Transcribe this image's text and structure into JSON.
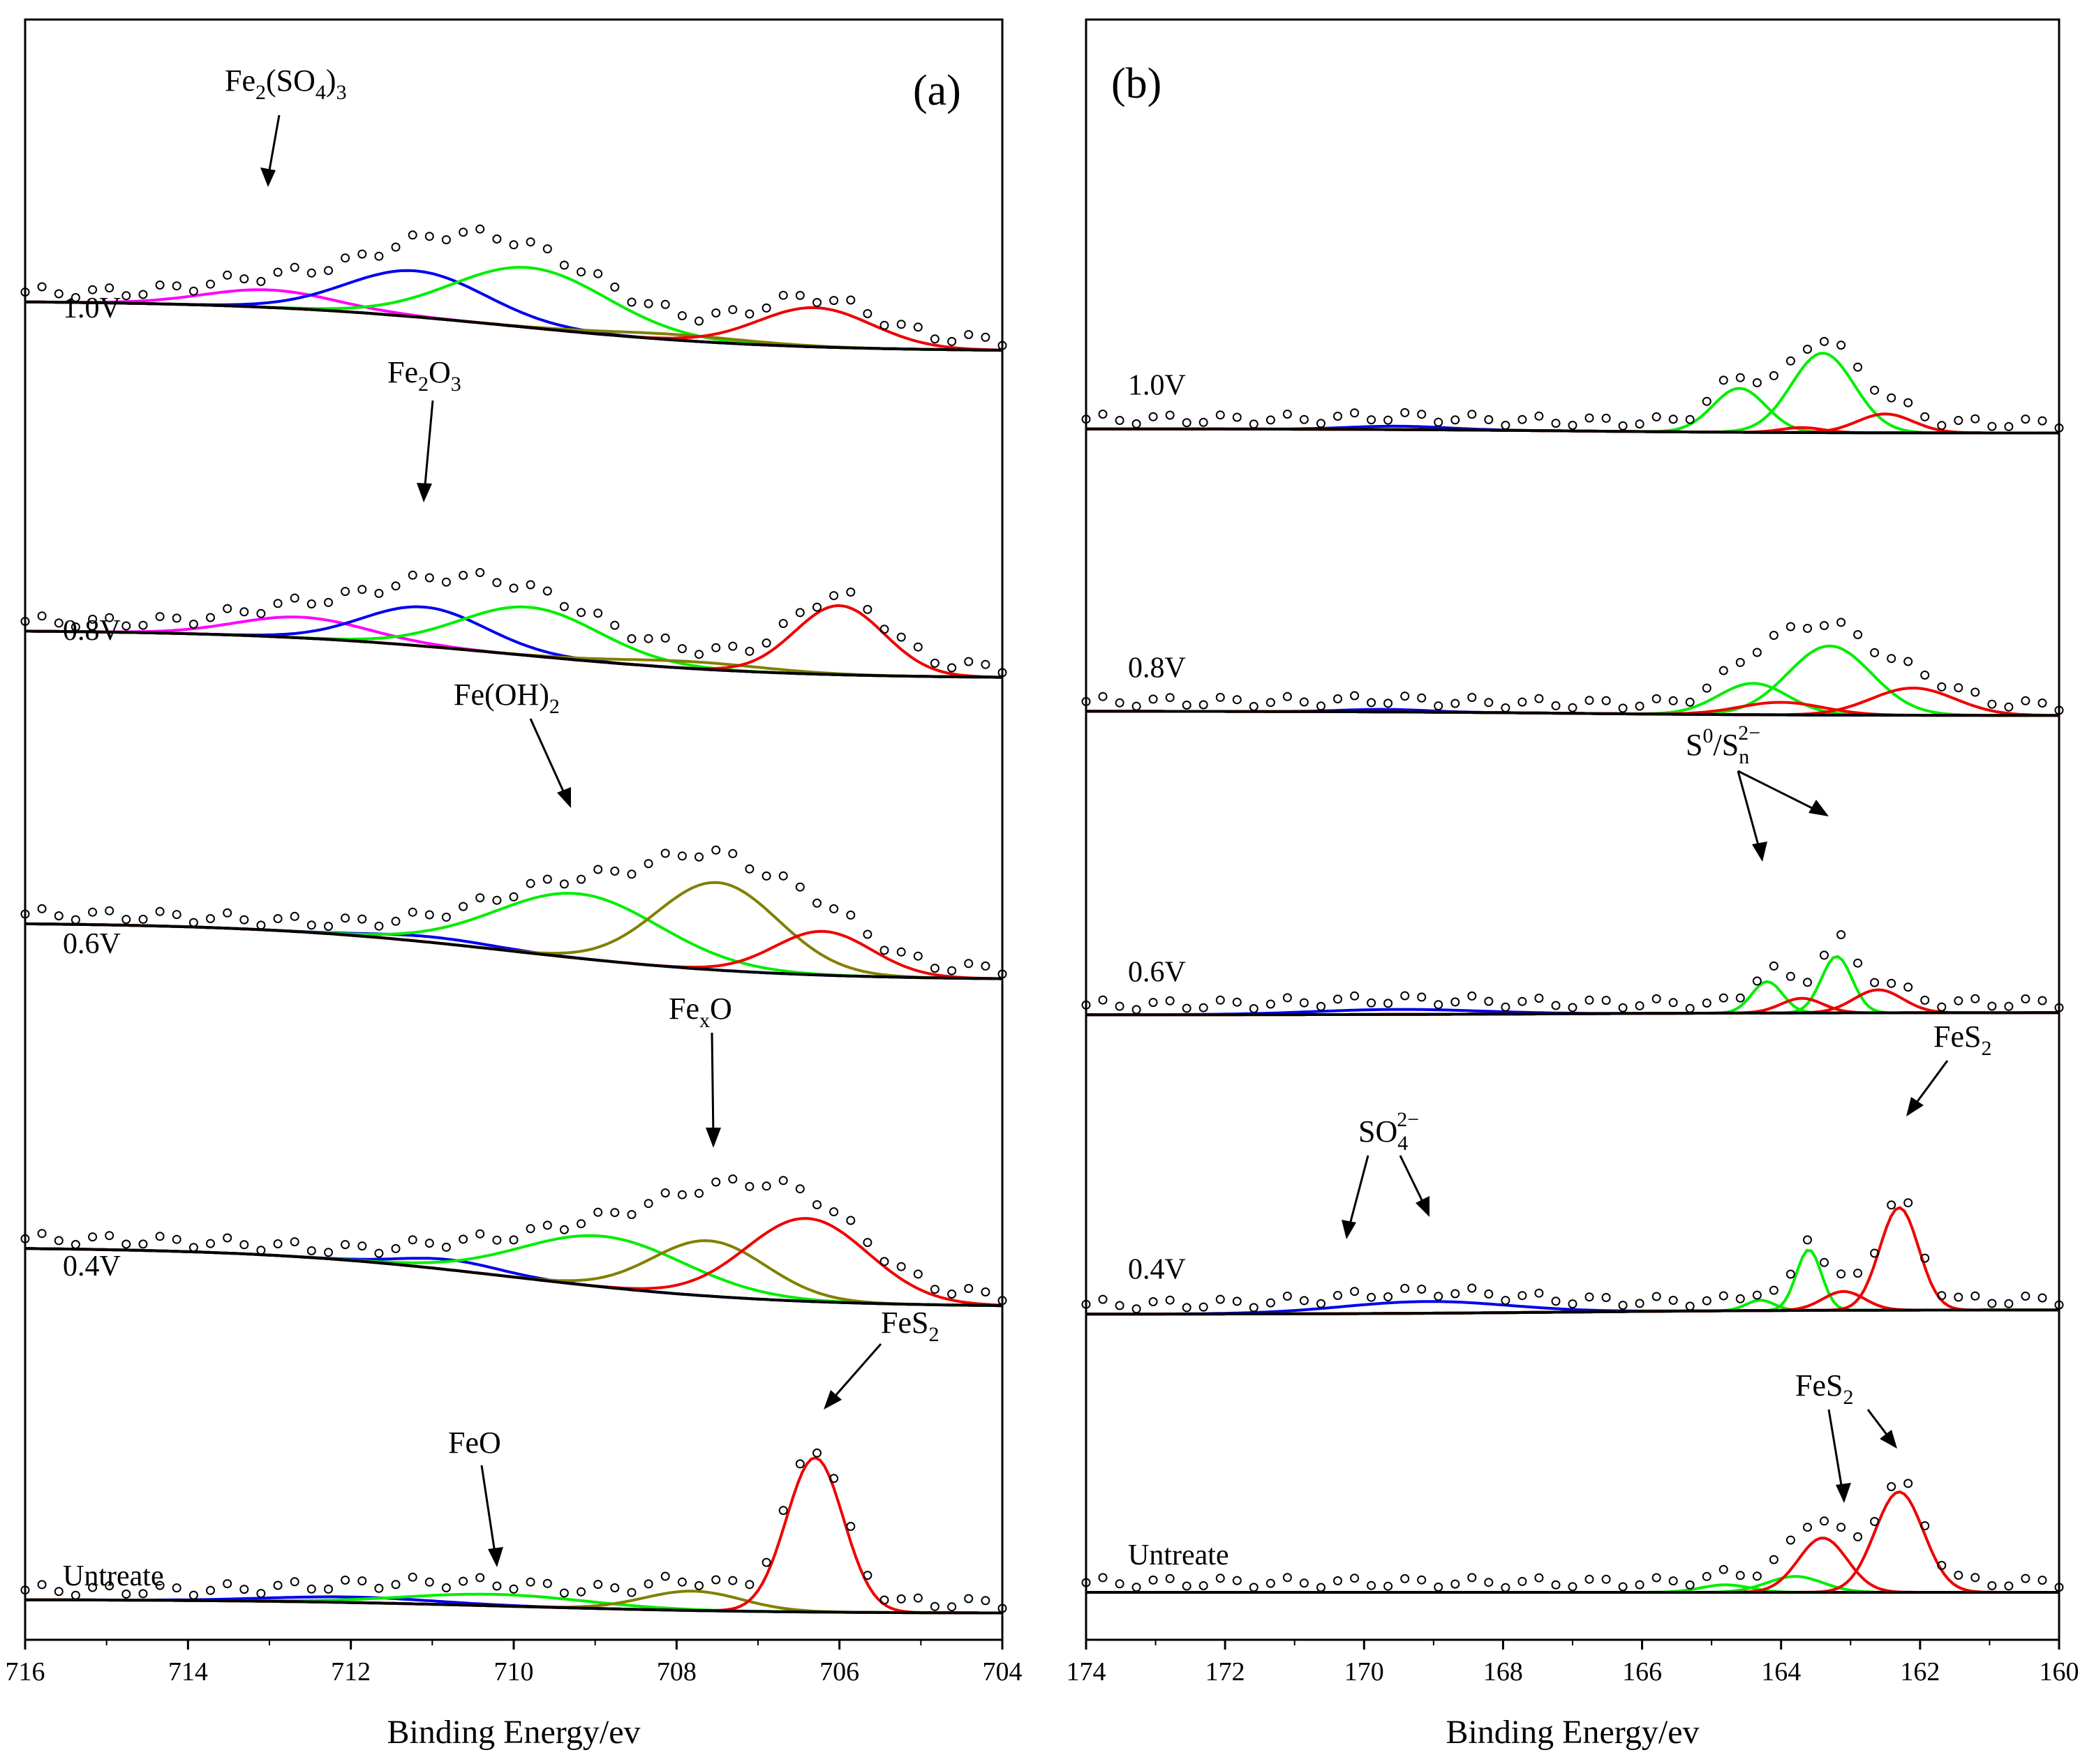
{
  "chart_data": [
    {
      "panel": "(a)",
      "type": "line",
      "subtype": "xps-spectra-stacked",
      "xlabel": "Binding Energy/ev",
      "xlim": [
        716,
        704
      ],
      "xticks": [
        "716",
        "714",
        "712",
        "710",
        "708",
        "706",
        "704"
      ],
      "components": {
        "Fe2(SO4)3": {
          "color": "#ff00ff"
        },
        "Fe2O3": {
          "color": "#0000ee"
        },
        "Fe(OH)2": {
          "color": "#00ee00"
        },
        "FexO": {
          "color": "#808000"
        },
        "FeS2": {
          "color": "#ee0000"
        },
        "baseline": {
          "color": "#000000"
        }
      },
      "spectra": [
        {
          "label": "1.0V",
          "offset": 3.9,
          "bg": [
            0.1,
            1.2
          ],
          "peaks": [
            {
              "c": "#ff00ff",
              "x": 713.0,
              "w": 0.8,
              "h": 0.38
            },
            {
              "c": "#0000ee",
              "x": 711.2,
              "w": 0.85,
              "h": 1.0
            },
            {
              "c": "#00ee00",
              "x": 709.8,
              "w": 0.95,
              "h": 1.3
            },
            {
              "c": "#808000",
              "x": 708.0,
              "w": 0.9,
              "h": 0.12
            },
            {
              "c": "#ee0000",
              "x": 706.3,
              "w": 0.7,
              "h": 0.85
            }
          ]
        },
        {
          "label": "0.8V",
          "offset": 2.9,
          "bg": [
            0.0,
            1.05
          ],
          "peaks": [
            {
              "c": "#ff00ff",
              "x": 712.6,
              "w": 0.8,
              "h": 0.45
            },
            {
              "c": "#0000ee",
              "x": 711.1,
              "w": 0.75,
              "h": 0.85
            },
            {
              "c": "#00ee00",
              "x": 709.8,
              "w": 0.85,
              "h": 1.05
            },
            {
              "c": "#808000",
              "x": 707.8,
              "w": 0.9,
              "h": 0.15
            },
            {
              "c": "#ee0000",
              "x": 706.0,
              "w": 0.55,
              "h": 1.5
            }
          ]
        },
        {
          "label": "0.6V",
          "offset": 1.95,
          "bg": [
            0.1,
            1.35
          ],
          "peaks": [
            {
              "c": "#0000ee",
              "x": 711.0,
              "w": 0.7,
              "h": 0.12
            },
            {
              "c": "#00ee00",
              "x": 709.2,
              "w": 1.0,
              "h": 1.4
            },
            {
              "c": "#808000",
              "x": 707.5,
              "w": 0.75,
              "h": 1.9
            },
            {
              "c": "#ee0000",
              "x": 706.2,
              "w": 0.6,
              "h": 0.95
            }
          ]
        },
        {
          "label": "0.4V",
          "offset": 0.95,
          "bg": [
            0.0,
            1.3
          ],
          "peaks": [
            {
              "c": "#0000ee",
              "x": 710.8,
              "w": 0.6,
              "h": 0.22
            },
            {
              "c": "#00ee00",
              "x": 708.9,
              "w": 1.0,
              "h": 1.1
            },
            {
              "c": "#808000",
              "x": 707.6,
              "w": 0.7,
              "h": 1.2
            },
            {
              "c": "#ee0000",
              "x": 706.4,
              "w": 0.75,
              "h": 1.8
            }
          ]
        },
        {
          "label": "Untreate",
          "offset": 0.0,
          "bg": [
            0.0,
            0.3
          ],
          "peaks": [
            {
              "c": "#0000ee",
              "x": 712.0,
              "w": 1.0,
              "h": 0.12
            },
            {
              "c": "#00ee00",
              "x": 710.2,
              "w": 1.1,
              "h": 0.25
            },
            {
              "c": "#808000",
              "x": 707.8,
              "w": 0.6,
              "h": 0.42
            },
            {
              "c": "#ee0000",
              "x": 706.3,
              "w": 0.35,
              "h": 3.35
            }
          ]
        }
      ],
      "annotations": [
        {
          "text": "Fe2(SO4)3"
        },
        {
          "text": "Fe2O3"
        },
        {
          "text": "Fe(OH)2"
        },
        {
          "text": "FexO"
        },
        {
          "text": "FeS2"
        },
        {
          "text": "FeO"
        }
      ]
    },
    {
      "panel": "(b)",
      "type": "line",
      "subtype": "xps-spectra-stacked",
      "xlabel": "Binding Energy/ev",
      "xlim": [
        174,
        160
      ],
      "xticks": [
        "174",
        "172",
        "170",
        "168",
        "166",
        "164",
        "162",
        "160"
      ],
      "components": {
        "SO4 2-": {
          "color": "#0000ee"
        },
        "S0/Sn 2-": {
          "color": "#00ee00"
        },
        "FeS2": {
          "color": "#ee0000"
        },
        "baseline": {
          "color": "#000000"
        }
      },
      "spectra": [
        {
          "label": "1.0V",
          "offset": 3.9,
          "bg": [
            0.0,
            0.1
          ],
          "peaks": [
            {
              "c": "#0000ee",
              "x": 169.5,
              "w": 0.7,
              "h": 0.08
            },
            {
              "c": "#00ee00",
              "x": 164.6,
              "w": 0.38,
              "h": 1.05
            },
            {
              "c": "#00ee00",
              "x": 163.4,
              "w": 0.45,
              "h": 1.9
            },
            {
              "c": "#ee0000",
              "x": 163.7,
              "w": 0.3,
              "h": 0.12
            },
            {
              "c": "#ee0000",
              "x": 162.5,
              "w": 0.4,
              "h": 0.45
            }
          ]
        },
        {
          "label": "0.8V",
          "offset": 2.95,
          "bg": [
            0.0,
            0.1
          ],
          "peaks": [
            {
              "c": "#0000ee",
              "x": 169.7,
              "w": 0.6,
              "h": 0.06
            },
            {
              "c": "#00ee00",
              "x": 164.4,
              "w": 0.5,
              "h": 0.75
            },
            {
              "c": "#00ee00",
              "x": 163.3,
              "w": 0.6,
              "h": 1.65
            },
            {
              "c": "#ee0000",
              "x": 164.0,
              "w": 0.6,
              "h": 0.3
            },
            {
              "c": "#ee0000",
              "x": 162.1,
              "w": 0.6,
              "h": 0.65
            }
          ]
        },
        {
          "label": "0.6V",
          "offset": 1.95,
          "bg": [
            0.0,
            -0.05
          ],
          "peaks": [
            {
              "c": "#0000ee",
              "x": 169.5,
              "w": 1.2,
              "h": 0.12
            },
            {
              "c": "#00ee00",
              "x": 164.2,
              "w": 0.22,
              "h": 0.75
            },
            {
              "c": "#00ee00",
              "x": 163.2,
              "w": 0.22,
              "h": 1.35
            },
            {
              "c": "#ee0000",
              "x": 163.7,
              "w": 0.3,
              "h": 0.35
            },
            {
              "c": "#ee0000",
              "x": 162.6,
              "w": 0.35,
              "h": 0.55
            }
          ]
        },
        {
          "label": "0.4V",
          "offset": 0.95,
          "bg": [
            0.0,
            -0.1
          ],
          "peaks": [
            {
              "c": "#0000ee",
              "x": 169.1,
              "w": 1.2,
              "h": 0.28
            },
            {
              "c": "#00ee00",
              "x": 164.3,
              "w": 0.2,
              "h": 0.25
            },
            {
              "c": "#00ee00",
              "x": 163.6,
              "w": 0.18,
              "h": 1.45
            },
            {
              "c": "#ee0000",
              "x": 163.1,
              "w": 0.3,
              "h": 0.45
            },
            {
              "c": "#ee0000",
              "x": 162.3,
              "w": 0.28,
              "h": 2.45
            }
          ]
        },
        {
          "label": "Untreate",
          "offset": 0.0,
          "bg": [
            0.0,
            0.0
          ],
          "peaks": [
            {
              "c": "#00ee00",
              "x": 164.8,
              "w": 0.35,
              "h": 0.18
            },
            {
              "c": "#00ee00",
              "x": 163.8,
              "w": 0.4,
              "h": 0.38
            },
            {
              "c": "#ee0000",
              "x": 163.4,
              "w": 0.35,
              "h": 1.3
            },
            {
              "c": "#ee0000",
              "x": 162.3,
              "w": 0.35,
              "h": 2.4
            }
          ]
        }
      ],
      "annotations": [
        {
          "text": "S0/Sn2-"
        },
        {
          "text": "FeS2"
        },
        {
          "text": "SO4 2-"
        },
        {
          "text": "FeS2"
        }
      ]
    }
  ]
}
